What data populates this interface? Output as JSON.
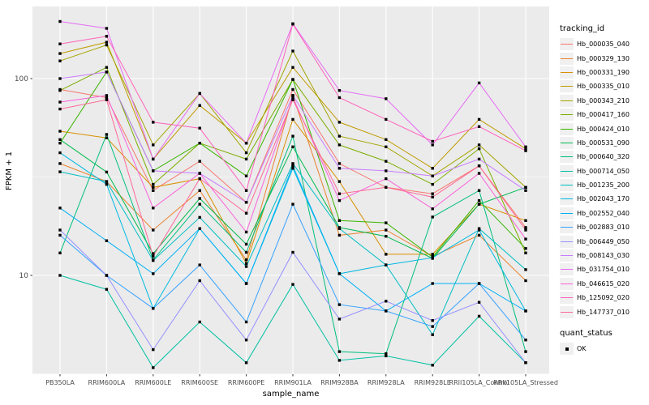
{
  "chart_data": {
    "type": "line",
    "title": "",
    "xlabel": "sample_name",
    "ylabel": "FPKM + 1",
    "y_scale": "log10",
    "y_ticks": [
      10,
      100
    ],
    "y_minor_ticks": [
      3.162,
      31.62
    ],
    "ylim": [
      3.0,
      232
    ],
    "grid": true,
    "panel_bg": "#EBEBEB",
    "grid_color": "#FFFFFF",
    "point_shape": "filled-square",
    "point_color": "#000000",
    "categories": [
      "PB350LA",
      "RRIM600LA",
      "RRIM600LE",
      "RRIM600SE",
      "RRIM600PE",
      "RRIM901LA",
      "RRIM928BA",
      "RRIM928LA",
      "RRIM928LE",
      "RRII105LA_Control",
      "RRII105LA_Stressed"
    ],
    "legend": {
      "position": "right",
      "color_title": "tracking_id",
      "shape_title": "quant_status",
      "shape_label": "OK"
    },
    "series": [
      {
        "name": "Hb_000035_040",
        "color": "#F8766D",
        "values": [
          88,
          80,
          27,
          38,
          23.5,
          88,
          37,
          28,
          26,
          36,
          17.5
        ]
      },
      {
        "name": "Hb_000329_130",
        "color": "#EA8331",
        "values": [
          37,
          30,
          17,
          27,
          12,
          82,
          16,
          17,
          12.5,
          16,
          9.4
        ]
      },
      {
        "name": "Hb_000331_190",
        "color": "#D89000",
        "values": [
          54,
          50,
          28,
          31,
          11.5,
          62,
          30,
          12.8,
          12.8,
          23,
          19
        ]
      },
      {
        "name": "Hb_000335_010",
        "color": "#C09B00",
        "values": [
          134,
          153,
          39,
          73,
          47,
          114,
          60,
          49,
          35,
          62,
          44
        ]
      },
      {
        "name": "Hb_000343_210",
        "color": "#A3A500",
        "values": [
          123,
          148,
          46,
          84,
          42,
          138,
          51,
          45,
          32,
          46,
          28
        ]
      },
      {
        "name": "Hb_000417_160",
        "color": "#7CAE00",
        "values": [
          87,
          114,
          29,
          47,
          39,
          99,
          46,
          38,
          29,
          44,
          13
        ]
      },
      {
        "name": "Hb_000424_010",
        "color": "#39B600",
        "values": [
          47,
          108,
          34,
          47,
          32,
          99,
          19,
          18.5,
          12.4,
          24,
          13.7
        ]
      },
      {
        "name": "Hb_000531_090",
        "color": "#00BB4E",
        "values": [
          49,
          33.5,
          12.9,
          24.6,
          14.4,
          45,
          17.5,
          15.8,
          12.2,
          23,
          28
        ]
      },
      {
        "name": "Hb_000640_320",
        "color": "#00BF7D",
        "values": [
          13,
          52,
          12,
          23,
          13.1,
          51,
          4.1,
          4.0,
          19.8,
          27,
          4.1
        ]
      },
      {
        "name": "Hb_000714_050",
        "color": "#00C1A3",
        "values": [
          10,
          8.5,
          3.4,
          5.8,
          3.6,
          9,
          3.7,
          3.9,
          3.5,
          6.2,
          3.6
        ]
      },
      {
        "name": "Hb_001235_200",
        "color": "#00BFC4",
        "values": [
          33.6,
          30,
          11.9,
          19.7,
          11.1,
          37,
          17.3,
          11.3,
          5.0,
          17.3,
          10.7
        ]
      },
      {
        "name": "Hb_002043_170",
        "color": "#00BAE0",
        "values": [
          42,
          29,
          6.8,
          17.3,
          9.1,
          35,
          10.2,
          11.3,
          12.3,
          17,
          6.6
        ]
      },
      {
        "name": "Hb_002552_040",
        "color": "#00B0F6",
        "values": [
          22,
          15,
          10.2,
          17.3,
          9.1,
          36,
          10.2,
          6.6,
          9.1,
          9.1,
          6.6
        ]
      },
      {
        "name": "Hb_002883_010",
        "color": "#35A2FF",
        "values": [
          16,
          10,
          6.8,
          11.3,
          5.8,
          23,
          7.1,
          6.6,
          5.5,
          9.1,
          4.7
        ]
      },
      {
        "name": "Hb_006449_050",
        "color": "#9590FF",
        "values": [
          17,
          10,
          4.2,
          9.4,
          4.7,
          13.1,
          6.0,
          7.4,
          5.9,
          7.3,
          3.6
        ]
      },
      {
        "name": "Hb_008143_030",
        "color": "#C77CFF",
        "values": [
          100,
          108,
          34,
          33,
          23.5,
          82,
          35,
          34,
          32,
          39,
          27
        ]
      },
      {
        "name": "Hb_031754_010",
        "color": "#E76BF3",
        "values": [
          195,
          180,
          39,
          84,
          47,
          190,
          87,
          79,
          46,
          95,
          45
        ]
      },
      {
        "name": "Hb_046615_020",
        "color": "#FA62DB",
        "values": [
          76,
          82,
          22,
          33,
          16.6,
          80,
          24,
          31,
          21.8,
          33,
          15.3
        ]
      },
      {
        "name": "Hb_125092_020",
        "color": "#FF62BC",
        "values": [
          150,
          164,
          60,
          56,
          27,
          189,
          80,
          62,
          48,
          57,
          43
        ]
      },
      {
        "name": "Hb_147737_010",
        "color": "#FF6A98",
        "values": [
          70,
          78,
          12.5,
          31,
          20.7,
          78,
          26,
          28,
          25,
          36,
          17
        ]
      }
    ]
  }
}
